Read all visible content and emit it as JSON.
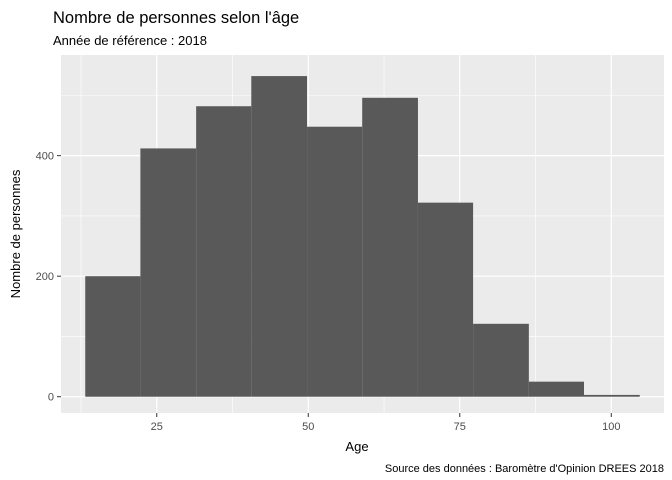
{
  "chart_data": {
    "type": "bar",
    "title": "Nombre de personnes selon l'âge",
    "subtitle": "Année de référence : 2018",
    "xlabel": "Age",
    "ylabel": "Nombre de personnes",
    "caption": "Source des données : Baromètre d'Opinion DREES 2018",
    "bins": [
      {
        "x0": 13.2,
        "x1": 22.3,
        "value": 200
      },
      {
        "x0": 22.3,
        "x1": 31.5,
        "value": 412
      },
      {
        "x0": 31.5,
        "x1": 40.6,
        "value": 482
      },
      {
        "x0": 40.6,
        "x1": 49.8,
        "value": 532
      },
      {
        "x0": 49.8,
        "x1": 58.9,
        "value": 448
      },
      {
        "x0": 58.9,
        "x1": 68.1,
        "value": 496
      },
      {
        "x0": 68.1,
        "x1": 77.2,
        "value": 322
      },
      {
        "x0": 77.2,
        "x1": 86.4,
        "value": 121
      },
      {
        "x0": 86.4,
        "x1": 95.5,
        "value": 25
      },
      {
        "x0": 95.5,
        "x1": 104.7,
        "value": 3
      }
    ],
    "xlim": [
      9.2,
      108.7
    ],
    "ylim": [
      -27,
      567
    ],
    "xticks": [
      25,
      50,
      75,
      100
    ],
    "yticks": [
      0,
      200,
      400
    ],
    "grid": true,
    "bar_color": "#595959",
    "panel_color": "#ebebeb",
    "grid_color": "#ffffff"
  }
}
